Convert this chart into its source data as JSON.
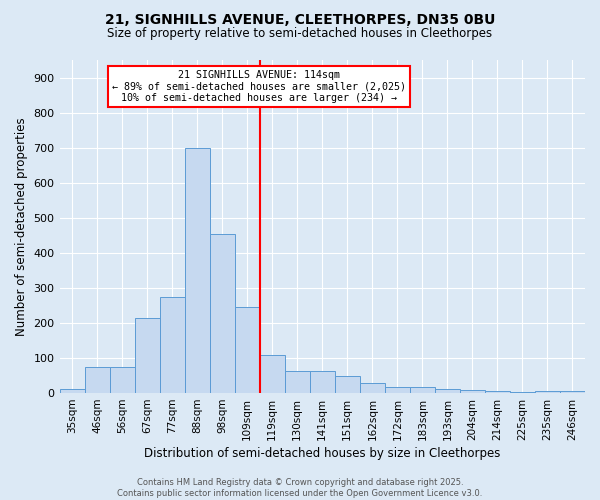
{
  "title": "21, SIGNHILLS AVENUE, CLEETHORPES, DN35 0BU",
  "subtitle": "Size of property relative to semi-detached houses in Cleethorpes",
  "xlabel": "Distribution of semi-detached houses by size in Cleethorpes",
  "ylabel": "Number of semi-detached properties",
  "categories": [
    "35sqm",
    "46sqm",
    "56sqm",
    "67sqm",
    "77sqm",
    "88sqm",
    "98sqm",
    "109sqm",
    "119sqm",
    "130sqm",
    "141sqm",
    "151sqm",
    "162sqm",
    "172sqm",
    "183sqm",
    "193sqm",
    "204sqm",
    "214sqm",
    "225sqm",
    "235sqm",
    "246sqm"
  ],
  "values": [
    13,
    75,
    75,
    213,
    275,
    700,
    455,
    245,
    110,
    63,
    63,
    50,
    28,
    18,
    18,
    12,
    8,
    5,
    3,
    5,
    5
  ],
  "bar_color": "#c6d9f0",
  "bar_edge_color": "#5b9bd5",
  "red_line_x": 8.5,
  "red_line_label": "21 SIGNHILLS AVENUE: 114sqm",
  "annotation_line1": "← 89% of semi-detached houses are smaller (2,025)",
  "annotation_line2": "10% of semi-detached houses are larger (234) →",
  "ylim": [
    0,
    950
  ],
  "yticks": [
    0,
    100,
    200,
    300,
    400,
    500,
    600,
    700,
    800,
    900
  ],
  "footnote1": "Contains HM Land Registry data © Crown copyright and database right 2025.",
  "footnote2": "Contains public sector information licensed under the Open Government Licence v3.0.",
  "bg_color": "#dce9f5",
  "plot_bg_color": "#dce9f5",
  "grid_color": "#ffffff"
}
